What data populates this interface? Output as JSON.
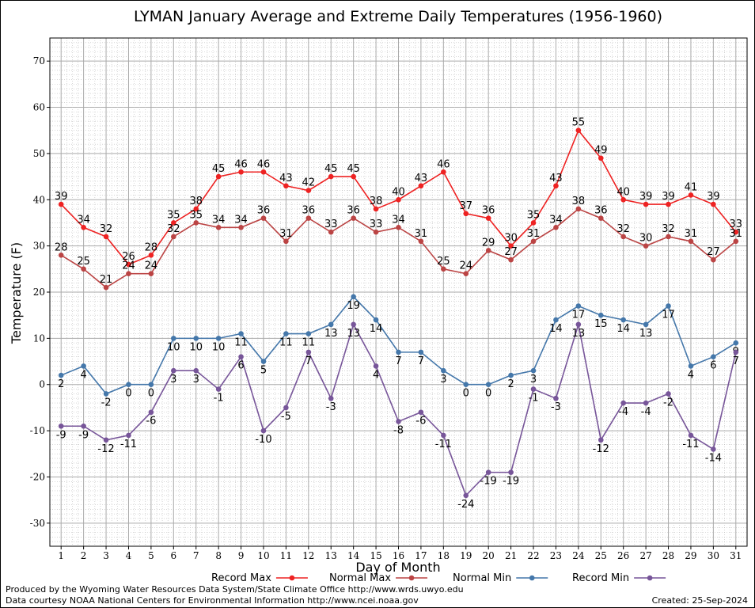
{
  "chart_data": {
    "type": "line",
    "title": "LYMAN January Average and Extreme Daily Temperatures (1956-1960)",
    "xlabel": "Day of Month",
    "ylabel": "Temperature (F)",
    "x": [
      1,
      2,
      3,
      4,
      5,
      6,
      7,
      8,
      9,
      10,
      11,
      12,
      13,
      14,
      15,
      16,
      17,
      18,
      19,
      20,
      21,
      22,
      23,
      24,
      25,
      26,
      27,
      28,
      29,
      30,
      31
    ],
    "xlim": [
      0.5,
      31.5
    ],
    "ylim": [
      -35,
      75
    ],
    "y_ticks": [
      -30,
      -20,
      -10,
      0,
      10,
      20,
      30,
      40,
      50,
      60,
      70
    ],
    "grid": true,
    "legend_position": "bottom",
    "series": [
      {
        "name": "Record Max",
        "color": "#ee2222",
        "label_pos": "above",
        "values": [
          39,
          34,
          32,
          26,
          28,
          35,
          38,
          45,
          46,
          46,
          43,
          42,
          45,
          45,
          38,
          40,
          43,
          46,
          37,
          36,
          30,
          35,
          43,
          55,
          49,
          40,
          39,
          39,
          41,
          39,
          33
        ]
      },
      {
        "name": "Normal Max",
        "color": "#bb4444",
        "label_pos": "above",
        "values": [
          28,
          25,
          21,
          24,
          24,
          32,
          35,
          34,
          34,
          36,
          31,
          36,
          33,
          36,
          33,
          34,
          31,
          25,
          24,
          29,
          27,
          31,
          34,
          38,
          36,
          32,
          30,
          32,
          31,
          27,
          31
        ]
      },
      {
        "name": "Normal Min",
        "color": "#4477aa",
        "label_pos": "below",
        "values": [
          2,
          4,
          -2,
          0,
          0,
          10,
          10,
          10,
          11,
          5,
          11,
          11,
          13,
          19,
          14,
          7,
          7,
          3,
          0,
          0,
          2,
          3,
          14,
          17,
          15,
          14,
          13,
          17,
          4,
          6,
          9
        ]
      },
      {
        "name": "Record Min",
        "color": "#775599",
        "label_pos": "below",
        "values": [
          -9,
          -9,
          -12,
          -11,
          -6,
          3,
          3,
          -1,
          6,
          -10,
          -5,
          7,
          -3,
          13,
          4,
          -8,
          -6,
          -11,
          -24,
          -19,
          -19,
          -1,
          -3,
          13,
          -12,
          -4,
          -4,
          -2,
          -11,
          -14,
          7
        ]
      }
    ]
  },
  "footer": {
    "line1": "Produced by the Wyoming Water Resources Data System/State Climate Office http://www.wrds.uwyo.edu",
    "line2": "Data courtesy NOAA National Centers for Environmental Information http://www.ncei.noaa.gov",
    "created": "Created:  25-Sep-2024"
  }
}
